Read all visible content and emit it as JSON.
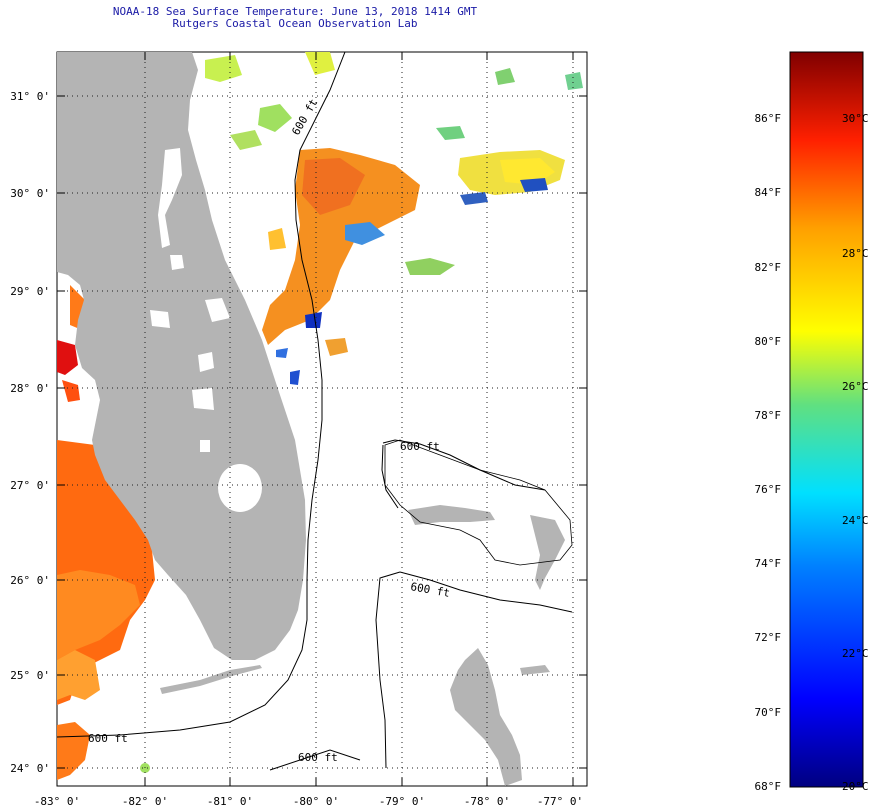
{
  "header": {
    "title": "NOAA-18 Sea Surface Temperature:  June 13, 2018 1414 GMT",
    "subtitle": "Rutgers Coastal Ocean Observation Lab"
  },
  "map": {
    "lat_labels": [
      "31° 0'",
      "30° 0'",
      "29° 0'",
      "28° 0'",
      "27° 0'",
      "26° 0'",
      "25° 0'",
      "24° 0'"
    ],
    "lon_labels": [
      "-83° 0'",
      "-82° 0'",
      "-81° 0'",
      "-80° 0'",
      "-79° 0'",
      "-78° 0'",
      "-77° 0'"
    ],
    "contour_labels": [
      "600 ft",
      "600 ft",
      "600 ft",
      "600 ft",
      "600 ft"
    ],
    "land_color": "#b4b4b4"
  },
  "colorbar": {
    "f_labels": [
      "86°F",
      "84°F",
      "82°F",
      "80°F",
      "78°F",
      "76°F",
      "74°F",
      "72°F",
      "70°F",
      "68°F"
    ],
    "c_labels": [
      "30°C",
      "28°C",
      "26°C",
      "24°C",
      "22°C",
      "20°C"
    ]
  }
}
